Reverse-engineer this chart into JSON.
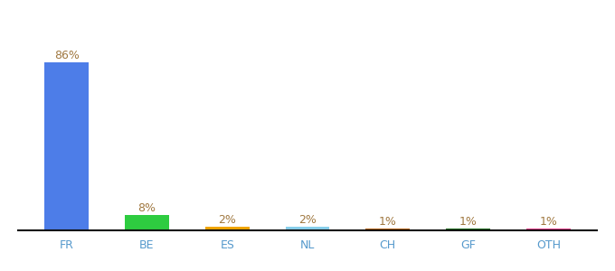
{
  "categories": [
    "FR",
    "BE",
    "ES",
    "NL",
    "CH",
    "GF",
    "OTH"
  ],
  "values": [
    86,
    8,
    2,
    2,
    1,
    1,
    1
  ],
  "labels": [
    "86%",
    "8%",
    "2%",
    "2%",
    "1%",
    "1%",
    "1%"
  ],
  "bar_colors": [
    "#4d7de8",
    "#2ecc40",
    "#f0a500",
    "#87ceeb",
    "#b8600e",
    "#1a6b1a",
    "#e8358a"
  ],
  "background_color": "#ffffff",
  "label_color": "#a07840",
  "label_fontsize": 9,
  "tick_fontsize": 9,
  "tick_color": "#5599cc",
  "ylim": [
    0,
    86
  ],
  "bar_width": 0.55
}
